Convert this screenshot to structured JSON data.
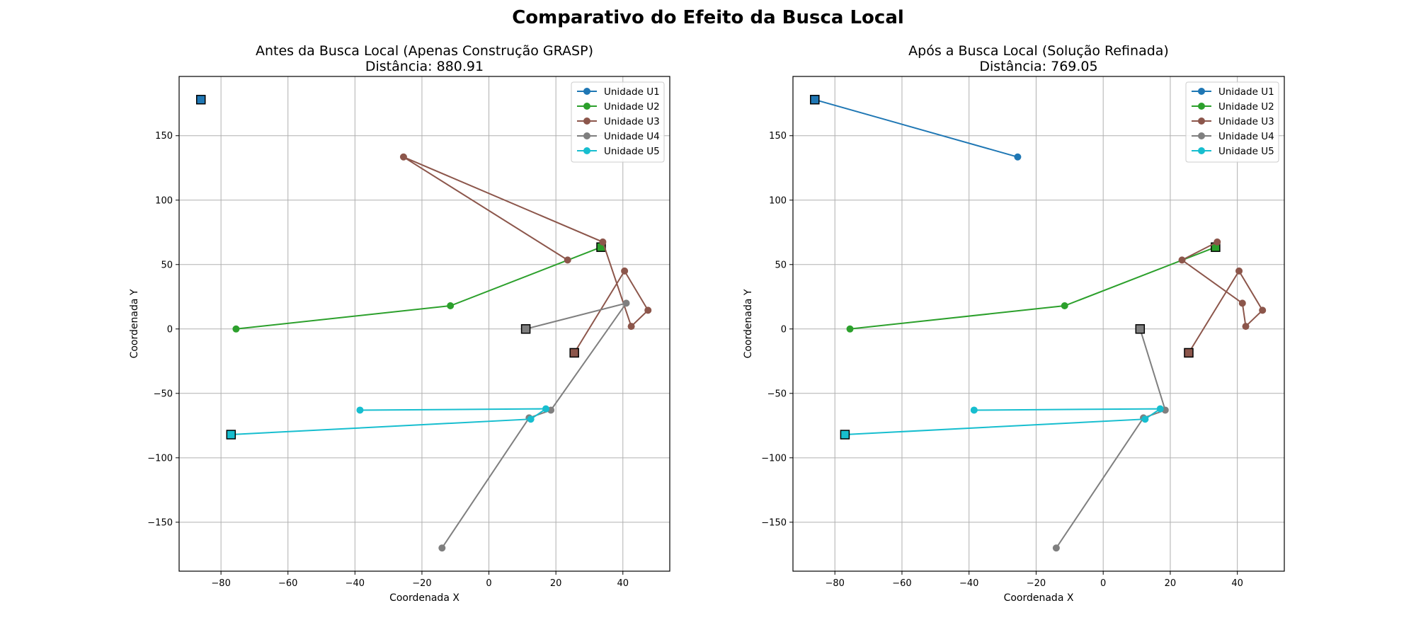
{
  "figure": {
    "title": "Comparativo do Efeito da Busca Local"
  },
  "chart_data": [
    {
      "type": "line",
      "title": "Antes da Busca Local (Apenas Construção GRASP)",
      "subtitle": "Distância: 880.91",
      "xlabel": "Coordenada X",
      "ylabel": "Coordenada Y",
      "xlim": [
        -92.5,
        54
      ],
      "ylim": [
        -188,
        196
      ],
      "xticks": [
        -80,
        -60,
        -40,
        -20,
        0,
        20,
        40
      ],
      "xtick_labels": [
        "−80",
        "−60",
        "−40",
        "−20",
        "0",
        "20",
        "40"
      ],
      "yticks": [
        -150,
        -100,
        -50,
        0,
        50,
        100,
        150
      ],
      "ytick_labels": [
        "−150",
        "−100",
        "−50",
        "0",
        "50",
        "100",
        "150"
      ],
      "grid": true,
      "legend_position": "top-right",
      "series": [
        {
          "name": "Unidade U1",
          "color": "#1f77b4",
          "depot": [
            -86,
            178
          ],
          "x": [],
          "y": []
        },
        {
          "name": "Unidade U2",
          "color": "#2ca02c",
          "depot": [
            33.5,
            63.5
          ],
          "x": [
            33.5,
            -11.5,
            -75.5
          ],
          "y": [
            63.5,
            18,
            0
          ]
        },
        {
          "name": "Unidade U3",
          "color": "#8c564b",
          "depot": [
            25.5,
            -18.5
          ],
          "x": [
            25.5,
            40.5,
            47.5,
            42.5,
            34,
            -25.5,
            23.5
          ],
          "y": [
            -18.5,
            45,
            14.5,
            2,
            67.5,
            133.5,
            53.5
          ]
        },
        {
          "name": "Unidade U4",
          "color": "#7f7f7f",
          "depot": [
            11,
            0
          ],
          "x": [
            11,
            41,
            18.5,
            12,
            -14
          ],
          "y": [
            0,
            20,
            -63,
            -69,
            -170
          ]
        },
        {
          "name": "Unidade U5",
          "color": "#17becf",
          "depot": [
            -77,
            -82
          ],
          "x": [
            -77,
            12.5,
            17,
            -38.5
          ],
          "y": [
            -82,
            -70,
            -62,
            -63
          ]
        }
      ]
    },
    {
      "type": "line",
      "title": "Após a Busca Local (Solução Refinada)",
      "subtitle": "Distância: 769.05",
      "xlabel": "Coordenada X",
      "ylabel": "Coordenada Y",
      "xlim": [
        -92.5,
        54
      ],
      "ylim": [
        -188,
        196
      ],
      "xticks": [
        -80,
        -60,
        -40,
        -20,
        0,
        20,
        40
      ],
      "xtick_labels": [
        "−80",
        "−60",
        "−40",
        "−20",
        "0",
        "20",
        "40"
      ],
      "yticks": [
        -150,
        -100,
        -50,
        0,
        50,
        100,
        150
      ],
      "ytick_labels": [
        "−150",
        "−100",
        "−50",
        "0",
        "50",
        "100",
        "150"
      ],
      "grid": true,
      "legend_position": "top-right",
      "series": [
        {
          "name": "Unidade U1",
          "color": "#1f77b4",
          "depot": [
            -86,
            178
          ],
          "x": [
            -86,
            -25.5
          ],
          "y": [
            178,
            133.5
          ]
        },
        {
          "name": "Unidade U2",
          "color": "#2ca02c",
          "depot": [
            33.5,
            63.5
          ],
          "x": [
            33.5,
            -11.5,
            -75.5
          ],
          "y": [
            63.5,
            18,
            0
          ]
        },
        {
          "name": "Unidade U3",
          "color": "#8c564b",
          "depot": [
            25.5,
            -18.5
          ],
          "x": [
            25.5,
            40.5,
            47.5,
            42.5,
            41.5,
            23.5,
            34
          ],
          "y": [
            -18.5,
            45,
            14.5,
            2,
            20,
            53.5,
            67.5
          ]
        },
        {
          "name": "Unidade U4",
          "color": "#7f7f7f",
          "depot": [
            11,
            0
          ],
          "x": [
            11,
            18.5,
            12,
            -14
          ],
          "y": [
            0,
            -63,
            -69,
            -170
          ]
        },
        {
          "name": "Unidade U5",
          "color": "#17becf",
          "depot": [
            -77,
            -82
          ],
          "x": [
            -77,
            12.5,
            17,
            -38.5
          ],
          "y": [
            -82,
            -70,
            -62,
            -63
          ]
        }
      ]
    }
  ]
}
